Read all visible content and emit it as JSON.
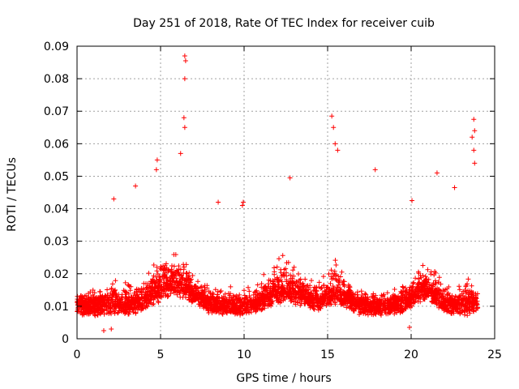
{
  "chart_data": {
    "type": "scatter",
    "title": "Day 251 of 2018, Rate Of TEC Index for receiver cuib",
    "xlabel": "GPS time / hours",
    "ylabel": "ROTI / TECUs",
    "xlim": [
      0,
      25
    ],
    "ylim": [
      0,
      0.09
    ],
    "xticks": [
      0,
      5,
      10,
      15,
      20,
      25
    ],
    "xtick_labels": [
      "0",
      "5",
      "10",
      "15",
      "20",
      "25"
    ],
    "yticks": [
      0,
      0.01,
      0.02,
      0.03,
      0.04,
      0.05,
      0.06,
      0.07,
      0.08,
      0.09
    ],
    "ytick_labels": [
      "0",
      "0.01",
      "0.02",
      "0.03",
      "0.04",
      "0.05",
      "0.06",
      "0.07",
      "0.08",
      "0.09"
    ],
    "grid": true,
    "marker": "+",
    "series_color": "#ff0000",
    "series": [
      {
        "name": "ROTI",
        "data_x_range": [
          0,
          24
        ],
        "typical_range": [
          0.005,
          0.03
        ],
        "notable_points": [
          {
            "x": 6.45,
            "y": 0.087
          },
          {
            "x": 6.5,
            "y": 0.0855
          },
          {
            "x": 6.45,
            "y": 0.08
          },
          {
            "x": 6.4,
            "y": 0.068
          },
          {
            "x": 6.45,
            "y": 0.065
          },
          {
            "x": 6.2,
            "y": 0.057
          },
          {
            "x": 4.8,
            "y": 0.055
          },
          {
            "x": 4.75,
            "y": 0.052
          },
          {
            "x": 15.25,
            "y": 0.0685
          },
          {
            "x": 15.35,
            "y": 0.065
          },
          {
            "x": 15.45,
            "y": 0.06
          },
          {
            "x": 15.6,
            "y": 0.058
          },
          {
            "x": 23.75,
            "y": 0.0675
          },
          {
            "x": 23.8,
            "y": 0.064
          },
          {
            "x": 23.75,
            "y": 0.058
          },
          {
            "x": 23.65,
            "y": 0.062
          },
          {
            "x": 23.8,
            "y": 0.054
          },
          {
            "x": 17.85,
            "y": 0.052
          },
          {
            "x": 21.55,
            "y": 0.051
          },
          {
            "x": 12.75,
            "y": 0.0495
          },
          {
            "x": 9.95,
            "y": 0.042
          },
          {
            "x": 9.9,
            "y": 0.041
          },
          {
            "x": 3.5,
            "y": 0.047
          },
          {
            "x": 22.6,
            "y": 0.0465
          },
          {
            "x": 2.2,
            "y": 0.043
          },
          {
            "x": 20.05,
            "y": 0.0425
          },
          {
            "x": 8.45,
            "y": 0.042
          },
          {
            "x": 1.6,
            "y": 0.0025
          },
          {
            "x": 2.05,
            "y": 0.003
          },
          {
            "x": 19.9,
            "y": 0.0035
          }
        ]
      }
    ]
  }
}
